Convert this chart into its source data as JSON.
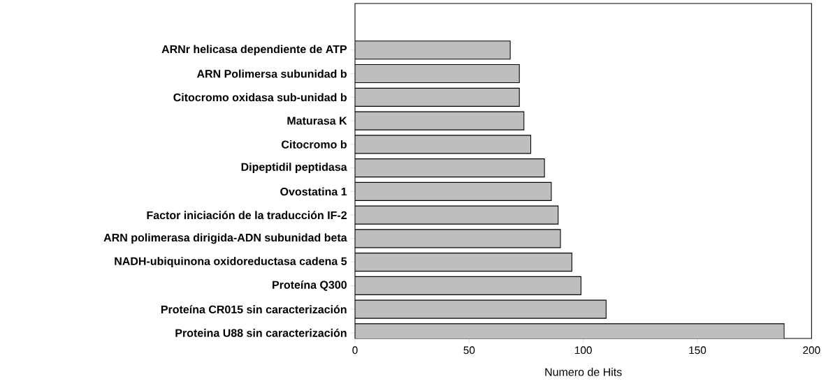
{
  "chart_data": {
    "type": "bar",
    "orientation": "horizontal",
    "xlabel": "Numero de Hits",
    "categories": [
      "ARNr helicasa dependiente de ATP",
      "ARN Polimersa subunidad b",
      "Citocromo oxidasa sub-unidad b",
      "Maturasa K",
      "Citocromo b",
      "Dipeptidil peptidasa",
      "Ovostatina 1",
      "Factor iniciación de la traducción IF-2",
      "ARN polimerasa dirigida-ADN subunidad beta",
      "NADH-ubiquinona oxidoreductasa cadena 5",
      "Proteína Q300",
      "Proteína CR015 sin caracterización",
      "Proteina U88 sin caracterización"
    ],
    "values": [
      68,
      72,
      72,
      74,
      77,
      83,
      86,
      89,
      90,
      95,
      99,
      110,
      188
    ],
    "color": "#bebebe",
    "xlim": [
      0,
      200
    ],
    "xticks": [
      0,
      50,
      100,
      150,
      200
    ]
  }
}
